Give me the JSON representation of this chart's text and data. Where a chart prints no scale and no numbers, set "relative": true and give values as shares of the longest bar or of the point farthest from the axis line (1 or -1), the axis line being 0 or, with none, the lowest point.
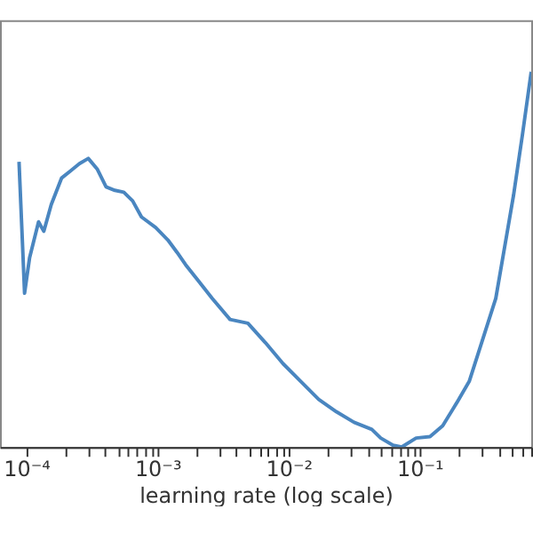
{
  "chart_data": {
    "type": "line",
    "xlabel": "learning rate (log scale)",
    "relative": true,
    "log": "x",
    "grid": false,
    "line_style": "solid",
    "color": "#4a86c0",
    "xlim": [
      6.3e-05,
      0.71
    ],
    "xticks": [
      {
        "value": 0.0001,
        "label": "10⁻⁴"
      },
      {
        "value": 0.0002,
        "label": null
      },
      {
        "value": 0.0003,
        "label": null
      },
      {
        "value": 0.0004,
        "label": null
      },
      {
        "value": 0.0005,
        "label": null
      },
      {
        "value": 0.0006,
        "label": null
      },
      {
        "value": 0.0007,
        "label": null
      },
      {
        "value": 0.0008,
        "label": null
      },
      {
        "value": 0.0009,
        "label": null
      },
      {
        "value": 0.001,
        "label": "10⁻³"
      },
      {
        "value": 0.002,
        "label": null
      },
      {
        "value": 0.003,
        "label": null
      },
      {
        "value": 0.004,
        "label": null
      },
      {
        "value": 0.005,
        "label": null
      },
      {
        "value": 0.006,
        "label": null
      },
      {
        "value": 0.007,
        "label": null
      },
      {
        "value": 0.008,
        "label": null
      },
      {
        "value": 0.009,
        "label": null
      },
      {
        "value": 0.01,
        "label": "10⁻²"
      },
      {
        "value": 0.02,
        "label": null
      },
      {
        "value": 0.03,
        "label": null
      },
      {
        "value": 0.04,
        "label": null
      },
      {
        "value": 0.05,
        "label": null
      },
      {
        "value": 0.06,
        "label": null
      },
      {
        "value": 0.07,
        "label": null
      },
      {
        "value": 0.08,
        "label": null
      },
      {
        "value": 0.09,
        "label": null
      },
      {
        "value": 0.1,
        "label": "10⁻¹"
      },
      {
        "value": 0.2,
        "label": null
      },
      {
        "value": 0.3,
        "label": null
      },
      {
        "value": 0.4,
        "label": null
      },
      {
        "value": 0.5,
        "label": null
      },
      {
        "value": 0.6,
        "label": null
      },
      {
        "value": 0.7,
        "label": null
      }
    ],
    "x": [
      8.8e-05,
      9.7e-05,
      0.000106,
      0.000124,
      0.000136,
      0.000155,
      0.000186,
      0.000218,
      0.000254,
      0.000297,
      0.000347,
      0.000406,
      0.000474,
      0.000554,
      0.000647,
      0.000756,
      0.00097,
      0.0012,
      0.00141,
      0.00164,
      0.00205,
      0.00262,
      0.00358,
      0.0049,
      0.00667,
      0.0091,
      0.0124,
      0.017,
      0.0232,
      0.0316,
      0.0432,
      0.0505,
      0.0627,
      0.073,
      0.094,
      0.12,
      0.15,
      0.192,
      0.239,
      0.297,
      0.381,
      0.52,
      0.61,
      0.71
    ],
    "values": [
      0.76,
      0.41,
      0.505,
      0.6,
      0.575,
      0.646,
      0.717,
      0.736,
      0.755,
      0.769,
      0.741,
      0.693,
      0.684,
      0.679,
      0.656,
      0.613,
      0.585,
      0.552,
      0.519,
      0.486,
      0.443,
      0.396,
      0.34,
      0.33,
      0.278,
      0.222,
      0.175,
      0.127,
      0.094,
      0.066,
      0.047,
      0.024,
      0.005,
      0,
      0.024,
      0.028,
      0.057,
      0.118,
      0.175,
      0.278,
      0.396,
      0.67,
      0.835,
      1.0
    ]
  }
}
